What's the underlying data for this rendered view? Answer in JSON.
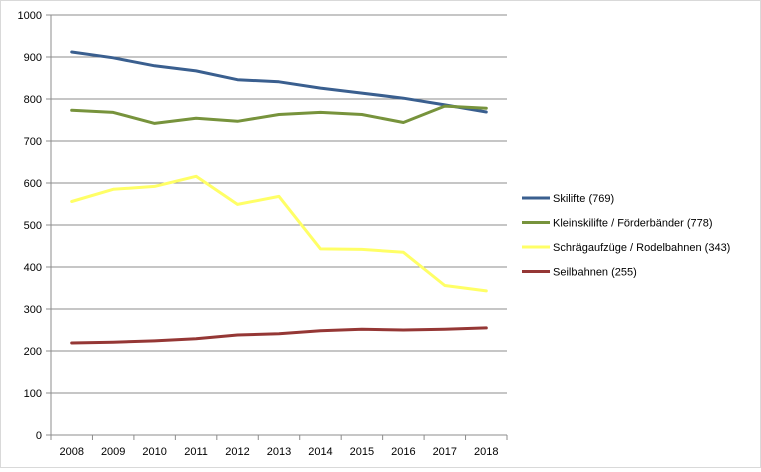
{
  "chart_data": {
    "type": "line",
    "title": "",
    "xlabel": "",
    "ylabel": "",
    "ylim": [
      0,
      1000
    ],
    "yticks": [
      0,
      100,
      200,
      300,
      400,
      500,
      600,
      700,
      800,
      900,
      1000
    ],
    "grid": "horizontal",
    "legend_position": "right",
    "categories": [
      "2008",
      "2009",
      "2010",
      "2011",
      "2012",
      "2013",
      "2014",
      "2015",
      "2016",
      "2017",
      "2018"
    ],
    "series": [
      {
        "name": "Skilifte (769)",
        "color": "#3a5f8f",
        "values": [
          912,
          898,
          879,
          867,
          846,
          841,
          826,
          814,
          802,
          786,
          769
        ]
      },
      {
        "name": "Kleinskilifte / Förderbänder (778)",
        "color": "#77933c",
        "values": [
          773,
          768,
          742,
          754,
          747,
          763,
          768,
          763,
          744,
          783,
          778
        ]
      },
      {
        "name": "Schrägaufzüge / Rodelbahnen (343)",
        "color": "#ffff66",
        "values": [
          556,
          585,
          592,
          616,
          549,
          568,
          443,
          442,
          435,
          356,
          343
        ]
      },
      {
        "name": "Seilbahnen (255)",
        "color": "#953735",
        "values": [
          219,
          221,
          224,
          229,
          238,
          241,
          248,
          252,
          250,
          252,
          255
        ]
      }
    ]
  }
}
